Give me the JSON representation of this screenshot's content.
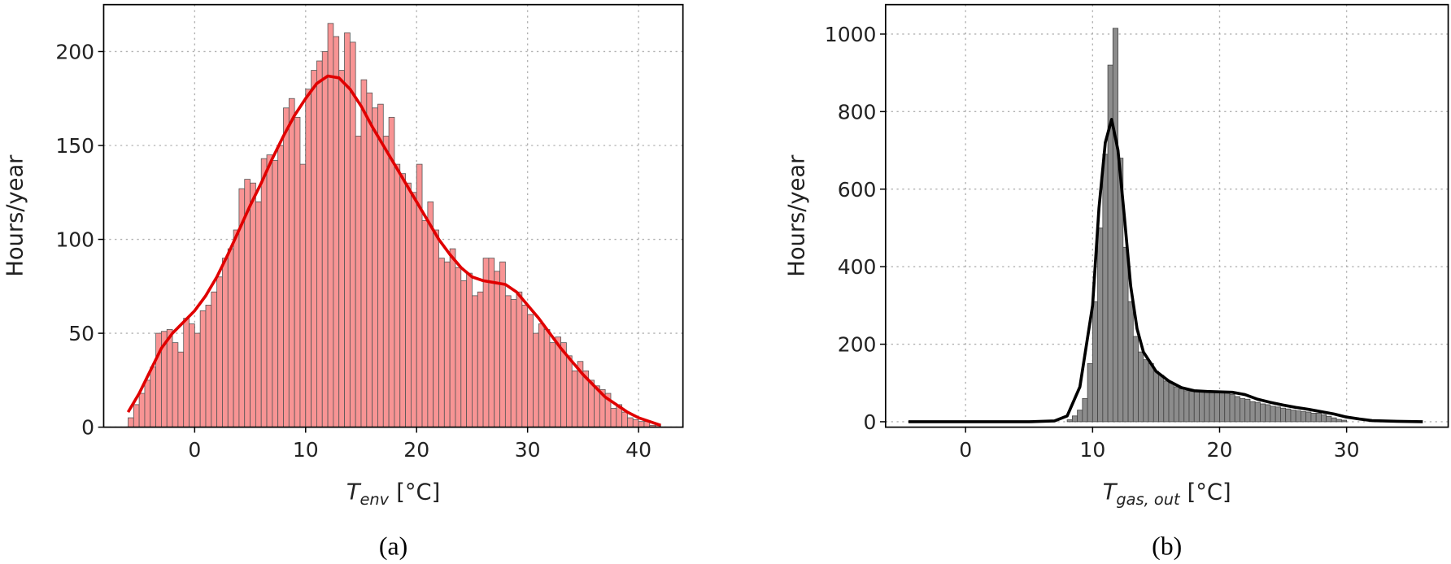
{
  "chart_data": [
    {
      "type": "histogram",
      "caption": "(a)",
      "ylabel": "Hours/year",
      "xlabel": {
        "symbol": "T",
        "subscript": "env",
        "unit": "[°C]"
      },
      "xlim": [
        -8.2,
        44
      ],
      "ylim": [
        0,
        225
      ],
      "xticks": [
        0,
        10,
        20,
        30,
        40
      ],
      "yticks": [
        0,
        50,
        100,
        150,
        200
      ],
      "grid": true,
      "color": "#f89494",
      "edgecolor": "#555555",
      "bins": [
        -6,
        -5.5,
        -5,
        -4.5,
        -4,
        -3.5,
        -3,
        -2.5,
        -2,
        -1.5,
        -1,
        -0.5,
        0,
        0.5,
        1,
        1.5,
        2,
        2.5,
        3,
        3.5,
        4,
        4.5,
        5,
        5.5,
        6,
        6.5,
        7,
        7.5,
        8,
        8.5,
        9,
        9.5,
        10,
        10.5,
        11,
        11.5,
        12,
        12.5,
        13,
        13.5,
        14,
        14.5,
        15,
        15.5,
        16,
        16.5,
        17,
        17.5,
        18,
        18.5,
        19,
        19.5,
        20,
        20.5,
        21,
        21.5,
        22,
        22.5,
        23,
        23.5,
        24,
        24.5,
        25,
        25.5,
        26,
        26.5,
        27,
        27.5,
        28,
        28.5,
        29,
        29.5,
        30,
        30.5,
        31,
        31.5,
        32,
        32.5,
        33,
        33.5,
        34,
        34.5,
        35,
        35.5,
        36,
        36.5,
        37,
        37.5,
        38,
        38.5,
        39,
        39.5,
        40,
        40.5,
        41,
        41.5,
        42
      ],
      "values": [
        5,
        12,
        18,
        25,
        32,
        50,
        51,
        52,
        45,
        40,
        58,
        55,
        50,
        62,
        65,
        72,
        80,
        90,
        95,
        105,
        127,
        132,
        130,
        120,
        143,
        145,
        142,
        150,
        170,
        175,
        165,
        140,
        180,
        190,
        195,
        200,
        215,
        208,
        190,
        210,
        205,
        155,
        185,
        178,
        170,
        172,
        155,
        165,
        140,
        135,
        130,
        125,
        140,
        110,
        120,
        105,
        90,
        88,
        95,
        85,
        78,
        82,
        70,
        72,
        90,
        90,
        83,
        88,
        70,
        68,
        72,
        65,
        60,
        50,
        55,
        52,
        45,
        48,
        45,
        38,
        30,
        35,
        30,
        25,
        22,
        20,
        18,
        10,
        12,
        8,
        5,
        4,
        3,
        3,
        1,
        1
      ],
      "line": {
        "color": "#e00000",
        "x": [
          -6,
          -5,
          -4,
          -3,
          -2,
          -1,
          0,
          1,
          2,
          3,
          4,
          5,
          6,
          7,
          8,
          9,
          10,
          11,
          12,
          13,
          14,
          15,
          16,
          17,
          18,
          19,
          20,
          21,
          22,
          23,
          24,
          25,
          26,
          27,
          28,
          29,
          30,
          31,
          32,
          33,
          34,
          35,
          36,
          37,
          38,
          39,
          40,
          41,
          42
        ],
        "values": [
          8,
          18,
          30,
          42,
          50,
          56,
          62,
          70,
          80,
          92,
          105,
          118,
          130,
          143,
          155,
          166,
          175,
          183,
          187,
          186,
          180,
          171,
          160,
          150,
          140,
          130,
          120,
          110,
          100,
          92,
          85,
          80,
          78,
          77,
          76,
          72,
          65,
          58,
          50,
          42,
          35,
          28,
          22,
          16,
          12,
          8,
          5,
          3,
          1
        ]
      }
    },
    {
      "type": "histogram",
      "caption": "(b)",
      "ylabel": "Hours/year",
      "xlabel": {
        "symbol": "T",
        "subscript": "gas, out",
        "unit": "[°C]"
      },
      "xlim": [
        -6.3,
        38
      ],
      "ylim": [
        -14,
        1076
      ],
      "xticks": [
        0,
        10,
        20,
        30
      ],
      "yticks": [
        0,
        200,
        400,
        600,
        800,
        1000
      ],
      "grid": true,
      "color": "#8c8c8c",
      "edgecolor": "#444444",
      "bins": [
        8,
        8.4,
        8.8,
        9.2,
        9.6,
        10,
        10.4,
        10.8,
        11.2,
        11.6,
        12,
        12.4,
        12.8,
        13.2,
        13.6,
        14,
        14.4,
        14.8,
        15.2,
        15.6,
        16,
        16.4,
        16.8,
        17.2,
        17.6,
        18,
        18.4,
        18.8,
        19.2,
        19.6,
        20,
        20.4,
        20.8,
        21.2,
        21.6,
        22,
        22.4,
        22.8,
        23.2,
        23.6,
        24,
        24.4,
        24.8,
        25.2,
        25.6,
        26,
        26.4,
        26.8,
        27.2,
        27.6,
        28,
        28.4,
        28.8,
        29.2,
        29.6,
        30
      ],
      "values": [
        5,
        15,
        30,
        60,
        150,
        310,
        500,
        690,
        920,
        1015,
        680,
        450,
        310,
        220,
        180,
        160,
        150,
        130,
        120,
        105,
        100,
        90,
        85,
        80,
        78,
        80,
        77,
        76,
        78,
        76,
        78,
        75,
        70,
        65,
        60,
        58,
        52,
        50,
        46,
        44,
        40,
        38,
        35,
        33,
        30,
        28,
        26,
        25,
        22,
        22,
        18,
        14,
        10,
        6,
        4
      ],
      "line": {
        "color": "#000000",
        "x": [
          -4.5,
          0,
          5,
          7,
          8,
          9,
          10,
          10.5,
          11,
          11.5,
          12,
          12.5,
          13,
          13.5,
          14,
          15,
          16,
          17,
          18,
          19,
          20,
          21,
          22,
          23,
          24,
          25,
          26,
          27,
          28,
          29,
          30,
          31,
          32,
          34,
          36
        ],
        "values": [
          0,
          0,
          0,
          2,
          15,
          90,
          300,
          550,
          720,
          780,
          700,
          530,
          350,
          240,
          180,
          130,
          105,
          88,
          80,
          78,
          77,
          76,
          70,
          58,
          50,
          43,
          37,
          32,
          26,
          20,
          12,
          7,
          3,
          1,
          0
        ]
      }
    }
  ]
}
